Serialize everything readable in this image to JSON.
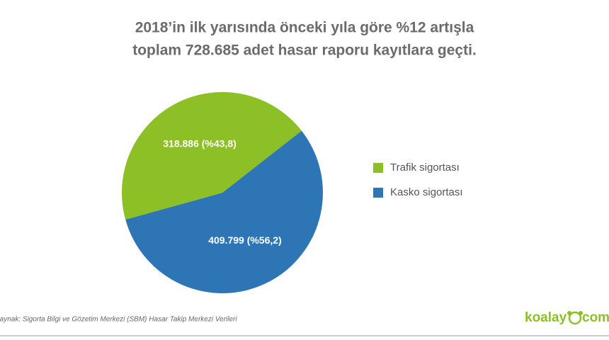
{
  "chart_data": {
    "type": "pie",
    "title": [
      "2018’in ilk yarısında önceki yıla göre %12 artışla",
      "toplam 728.685 adet hasar raporu kayıtlara geçti."
    ],
    "categories": [
      "Trafik sigortası",
      "Kasko sigortası"
    ],
    "values": [
      318886,
      409799
    ],
    "value_labels": [
      "318.886 (%43,8)",
      "409.799 (%56,2)"
    ],
    "colors": [
      "#8dbf26",
      "#2e75b6"
    ],
    "legend": "right",
    "source": "Kaynak: Sigorta Bilgi ve Gözetim Merkezi (SBM) Hasar Takip Merkezi Verileri"
  },
  "logo": {
    "name": "koalay",
    "suffix": "com"
  }
}
